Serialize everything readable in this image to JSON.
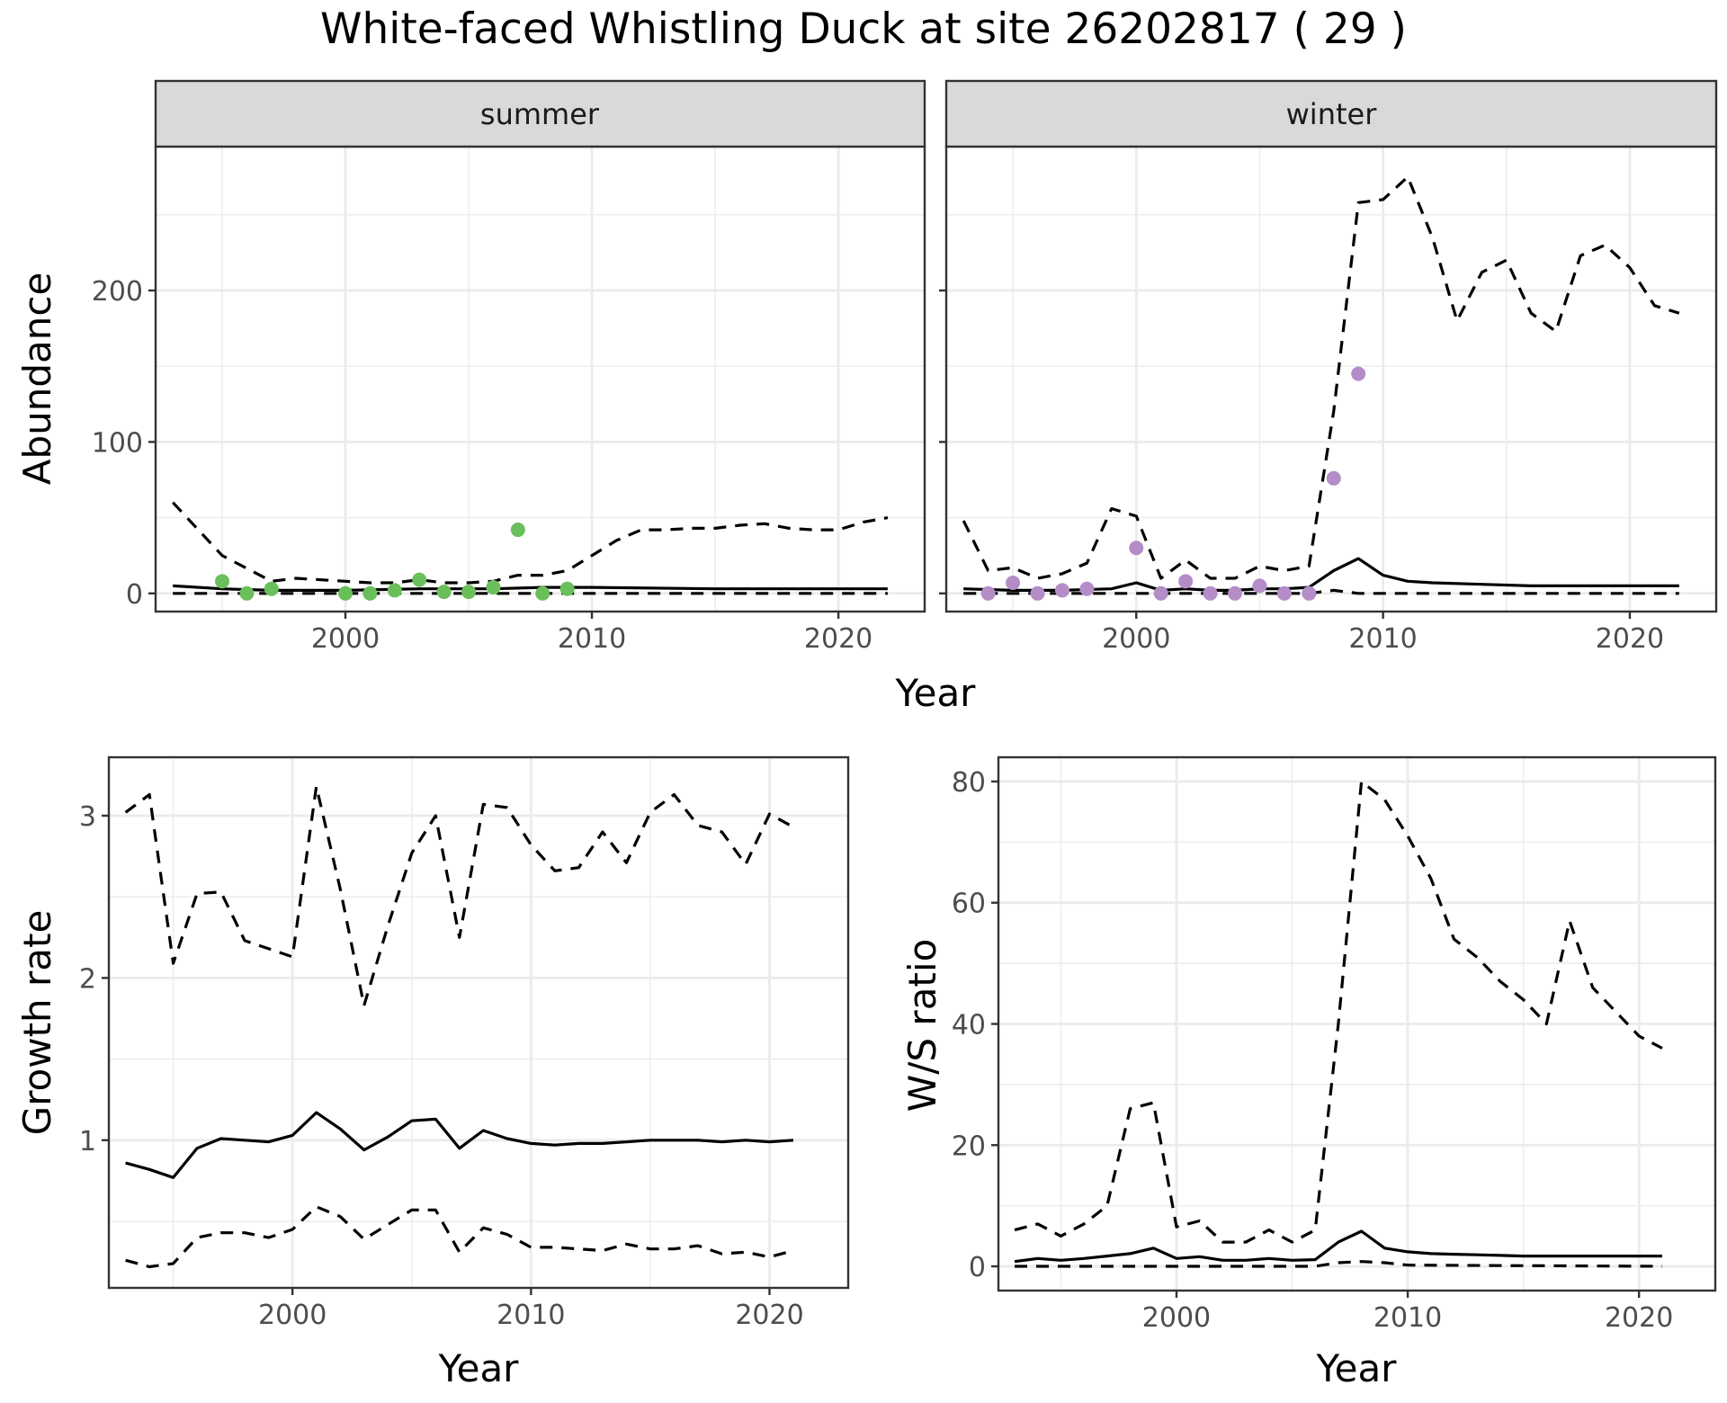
{
  "title": "White-faced Whistling Duck at site 26202817 ( 29 )",
  "colors": {
    "summer_points": "#6abf5a",
    "winter_points": "#b48dc8",
    "lines": "#000000"
  },
  "chart_data": [
    {
      "type": "line",
      "panel": "summer",
      "strip_label": "summer",
      "xlabel": "Year",
      "ylabel": "Abundance",
      "xlim": [
        1992.3,
        2023.5
      ],
      "ylim": [
        -12,
        295
      ],
      "x_ticks": [
        2000,
        2010,
        2020
      ],
      "y_ticks": [
        0,
        100,
        200
      ],
      "grid": true,
      "series": [
        {
          "style": "solid",
          "x": [
            1993,
            1995,
            1997,
            2000,
            2003,
            2006,
            2008,
            2010,
            2015,
            2022
          ],
          "y": [
            5,
            3,
            2,
            2,
            3,
            3,
            4,
            4,
            3,
            3
          ]
        },
        {
          "style": "dashed",
          "x": [
            1993,
            1995,
            1997,
            1998,
            2000,
            2001,
            2002,
            2003,
            2004,
            2005,
            2006,
            2007,
            2008,
            2009,
            2010,
            2011,
            2012,
            2013,
            2014,
            2015,
            2016,
            2017,
            2018,
            2019,
            2020,
            2021,
            2022
          ],
          "y": [
            60,
            25,
            8,
            10,
            8,
            7,
            7,
            9,
            7,
            7,
            8,
            12,
            12,
            15,
            25,
            35,
            42,
            42,
            43,
            43,
            45,
            46,
            43,
            42,
            42,
            47,
            50
          ]
        },
        {
          "style": "dashed",
          "x": [
            1993,
            2022
          ],
          "y": [
            0,
            0
          ]
        }
      ],
      "points": {
        "x": [
          1995,
          1996,
          1997,
          2000,
          2001,
          2002,
          2003,
          2004,
          2005,
          2006,
          2007,
          2008,
          2009
        ],
        "y": [
          8,
          0,
          3,
          0,
          0,
          2,
          9,
          1,
          1,
          4,
          42,
          0,
          3
        ]
      }
    },
    {
      "type": "line",
      "panel": "winter",
      "strip_label": "winter",
      "xlabel": "Year",
      "ylabel": "Abundance",
      "xlim": [
        1992.3,
        2023.5
      ],
      "ylim": [
        -12,
        295
      ],
      "x_ticks": [
        2000,
        2010,
        2020
      ],
      "y_ticks": [
        0,
        100,
        200
      ],
      "grid": true,
      "series": [
        {
          "style": "solid",
          "x": [
            1993,
            1995,
            1997,
            1999,
            2000,
            2001,
            2002,
            2003,
            2004,
            2005,
            2006,
            2007,
            2008,
            2009,
            2010,
            2011,
            2012,
            2014,
            2016,
            2018,
            2020,
            2022
          ],
          "y": [
            3,
            2,
            2,
            3,
            7,
            2,
            3,
            2,
            2,
            3,
            3,
            4,
            15,
            23,
            12,
            8,
            7,
            6,
            5,
            5,
            5,
            5
          ]
        },
        {
          "style": "dashed",
          "x": [
            1993,
            1994,
            1995,
            1996,
            1997,
            1998,
            1999,
            2000,
            2001,
            2002,
            2003,
            2004,
            2005,
            2006,
            2007,
            2008,
            2009,
            2010,
            2011,
            2012,
            2013,
            2014,
            2015,
            2016,
            2017,
            2018,
            2019,
            2020,
            2021,
            2022
          ],
          "y": [
            48,
            15,
            17,
            10,
            13,
            20,
            56,
            51,
            10,
            22,
            10,
            10,
            18,
            15,
            18,
            120,
            258,
            260,
            275,
            235,
            180,
            212,
            220,
            185,
            173,
            223,
            230,
            215,
            190,
            185
          ]
        },
        {
          "style": "dashed",
          "x": [
            1993,
            2007,
            2008,
            2009,
            2022
          ],
          "y": [
            0,
            0,
            2,
            0,
            0
          ]
        }
      ],
      "points": {
        "x": [
          1994,
          1995,
          1996,
          1997,
          1998,
          2000,
          2001,
          2002,
          2003,
          2004,
          2005,
          2006,
          2007,
          2008,
          2009
        ],
        "y": [
          0,
          7,
          0,
          2,
          3,
          30,
          0,
          8,
          0,
          0,
          5,
          0,
          0,
          76,
          145
        ]
      }
    },
    {
      "type": "line",
      "panel": "growth",
      "xlabel": "Year",
      "ylabel": "Growth rate",
      "xlim": [
        1992.3,
        2023.3
      ],
      "ylim": [
        0.09,
        3.36
      ],
      "x_ticks": [
        2000,
        2010,
        2020
      ],
      "y_ticks": [
        1,
        2,
        3
      ],
      "grid": true,
      "series": [
        {
          "style": "solid",
          "x": [
            1993,
            1994,
            1995,
            1996,
            1997,
            1998,
            1999,
            2000,
            2001,
            2002,
            2003,
            2004,
            2005,
            2006,
            2007,
            2008,
            2009,
            2010,
            2011,
            2012,
            2013,
            2014,
            2015,
            2016,
            2017,
            2018,
            2019,
            2020,
            2021
          ],
          "y": [
            0.86,
            0.82,
            0.77,
            0.95,
            1.01,
            1.0,
            0.99,
            1.03,
            1.17,
            1.07,
            0.94,
            1.02,
            1.12,
            1.13,
            0.95,
            1.06,
            1.01,
            0.98,
            0.97,
            0.98,
            0.98,
            0.99,
            1.0,
            1.0,
            1.0,
            0.99,
            1.0,
            0.99,
            1.0
          ]
        },
        {
          "style": "dashed",
          "x": [
            1993,
            1994,
            1995,
            1996,
            1997,
            1998,
            1999,
            2000,
            2001,
            2002,
            2003,
            2004,
            2005,
            2006,
            2007,
            2008,
            2009,
            2010,
            2011,
            2012,
            2013,
            2014,
            2015,
            2016,
            2017,
            2018,
            2019,
            2020,
            2021
          ],
          "y": [
            3.02,
            3.13,
            2.09,
            2.52,
            2.53,
            2.23,
            2.18,
            2.13,
            3.18,
            2.55,
            1.83,
            2.32,
            2.77,
            3.0,
            2.25,
            3.07,
            3.05,
            2.82,
            2.66,
            2.68,
            2.9,
            2.71,
            3.02,
            3.13,
            2.94,
            2.9,
            2.7,
            3.01,
            2.93
          ]
        },
        {
          "style": "dashed",
          "x": [
            1993,
            1994,
            1995,
            1996,
            1997,
            1998,
            1999,
            2000,
            2001,
            2002,
            2003,
            2004,
            2005,
            2006,
            2007,
            2008,
            2009,
            2010,
            2011,
            2012,
            2013,
            2014,
            2015,
            2016,
            2017,
            2018,
            2019,
            2020,
            2021
          ],
          "y": [
            0.26,
            0.22,
            0.24,
            0.4,
            0.43,
            0.43,
            0.4,
            0.45,
            0.59,
            0.53,
            0.39,
            0.48,
            0.57,
            0.57,
            0.31,
            0.46,
            0.42,
            0.34,
            0.34,
            0.33,
            0.32,
            0.36,
            0.33,
            0.33,
            0.35,
            0.3,
            0.31,
            0.28,
            0.32
          ]
        }
      ]
    },
    {
      "type": "line",
      "panel": "ratio",
      "xlabel": "Year",
      "ylabel": "W/S ratio",
      "xlim": [
        1992.3,
        2023.3
      ],
      "ylim": [
        -4,
        84
      ],
      "x_ticks": [
        2000,
        2010,
        2020
      ],
      "y_ticks": [
        0,
        20,
        40,
        60,
        80
      ],
      "grid": true,
      "series": [
        {
          "style": "solid",
          "x": [
            1993,
            1994,
            1995,
            1996,
            1997,
            1998,
            1999,
            2000,
            2001,
            2002,
            2003,
            2004,
            2005,
            2006,
            2007,
            2008,
            2009,
            2010,
            2011,
            2012,
            2013,
            2014,
            2015,
            2016,
            2017,
            2018,
            2019,
            2020,
            2021
          ],
          "y": [
            0.8,
            1.3,
            1.0,
            1.3,
            1.7,
            2.1,
            3.0,
            1.3,
            1.6,
            1.0,
            1.0,
            1.3,
            1.0,
            1.1,
            4.0,
            5.8,
            3.0,
            2.4,
            2.1,
            2.0,
            1.9,
            1.8,
            1.7,
            1.7,
            1.7,
            1.7,
            1.7,
            1.7,
            1.7
          ]
        },
        {
          "style": "dashed",
          "x": [
            1993,
            1994,
            1995,
            1996,
            1997,
            1998,
            1999,
            2000,
            2001,
            2002,
            2003,
            2004,
            2005,
            2006,
            2007,
            2008,
            2009,
            2010,
            2011,
            2012,
            2013,
            2014,
            2015,
            2016,
            2017,
            2018,
            2019,
            2020,
            2021
          ],
          "y": [
            6,
            7,
            5,
            7,
            10,
            26,
            27,
            6.5,
            7.5,
            4,
            4,
            6,
            4,
            6,
            40,
            80,
            77,
            71,
            64,
            54,
            51,
            47,
            44,
            40,
            57,
            46,
            42,
            38,
            36
          ]
        },
        {
          "style": "dashed",
          "x": [
            1993,
            2006,
            2007,
            2008,
            2009,
            2010,
            2021
          ],
          "y": [
            0,
            0,
            0.6,
            0.8,
            0.6,
            0.2,
            0
          ]
        }
      ]
    }
  ]
}
